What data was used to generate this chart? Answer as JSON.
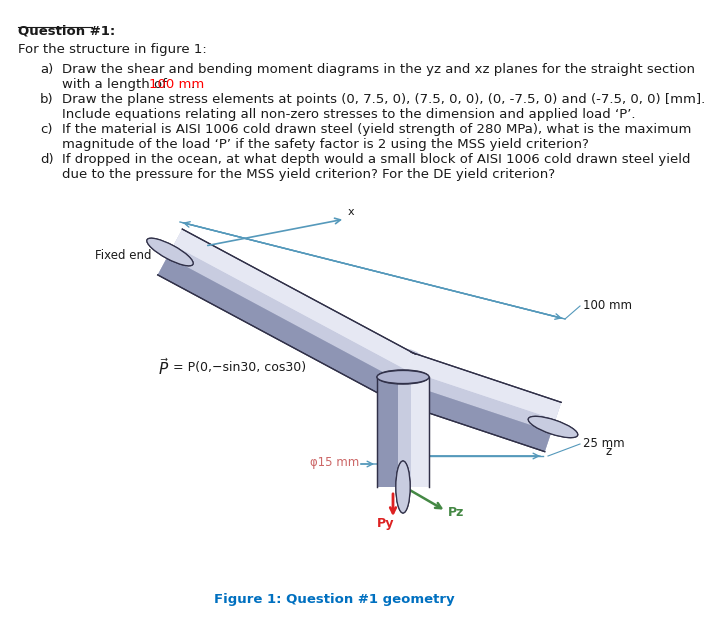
{
  "title": "Question #1:",
  "subtitle": "For the structure in figure 1:",
  "item_a_line1": "Draw the shear and bending moment diagrams in the yz and xz planes for the straight section",
  "item_a_line2_pre": "with a length of ",
  "item_a_line2_red": "100 mm",
  "item_a_line2_post": ".",
  "item_b_line1": "Draw the plane stress elements at points (0, 7.5, 0), (7.5, 0, 0), (0, -7.5, 0) and (-7.5, 0, 0) [mm].",
  "item_b_line2": "Include equations relating all non-zero stresses to the dimension and applied load ‘P’.",
  "item_c_line1": "If the material is AISI 1006 cold drawn steel (yield strength of 280 MPa), what is the maximum",
  "item_c_line2": "magnitude of the load ‘P’ if the safety factor is 2 using the MSS yield criterion?",
  "item_d_line1": "If dropped in the ocean, at what depth would a small block of AISI 1006 cold drawn steel yield",
  "item_d_line2": "due to the pressure for the MSS yield criterion? For the DE yield criterion?",
  "figure_caption": "Figure 1: Question #1 geometry",
  "fixed_end_label": "Fixed end",
  "p_vec_label": "= P(0,−sin30, cos30)",
  "phi15_label": "φ15 mm",
  "label_100mm": "100 mm",
  "label_25mm": "25 mm",
  "label_x": "x",
  "label_z": "z",
  "label_Py": "Py",
  "label_Pz": "Pz",
  "bg_color": "#ffffff",
  "text_color": "#1a1a1a",
  "red_color": "#ff0000",
  "dim_color": "#5599bb",
  "caption_color": "#0070c0",
  "phi_color": "#cc6666",
  "cyl_light": "#c8cce0",
  "cyl_mid": "#b0b4d0",
  "cyl_dark": "#8088aa",
  "cyl_edge": "#303048",
  "py_color": "#dd2222",
  "pz_color": "#448844"
}
